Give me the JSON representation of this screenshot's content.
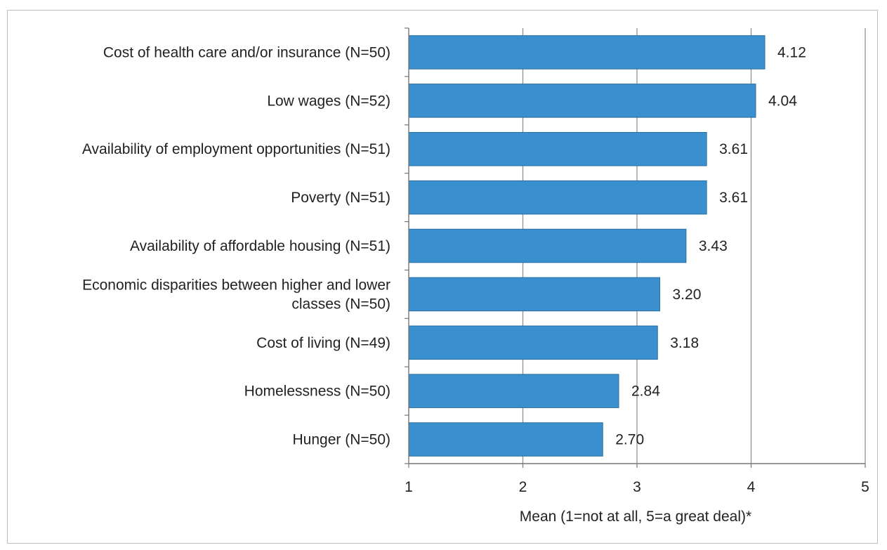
{
  "chart_data": {
    "type": "bar",
    "orientation": "horizontal",
    "categories": [
      "Cost of health care and/or insurance (N=50)",
      "Low wages (N=52)",
      "Availability of employment opportunities (N=51)",
      "Poverty (N=51)",
      "Availability of affordable housing (N=51)",
      "Economic disparities between higher and lower classes (N=50)",
      "Cost of living (N=49)",
      "Homelessness (N=50)",
      "Hunger (N=50)"
    ],
    "category_lines": [
      [
        "Cost of health care and/or insurance (N=50)"
      ],
      [
        "Low wages (N=52)"
      ],
      [
        "Availability of employment opportunities (N=51)"
      ],
      [
        "Poverty (N=51)"
      ],
      [
        "Availability of affordable housing (N=51)"
      ],
      [
        "Economic disparities between higher and lower",
        "classes (N=50)"
      ],
      [
        "Cost of living (N=49)"
      ],
      [
        "Homelessness (N=50)"
      ],
      [
        "Hunger (N=50)"
      ]
    ],
    "values": [
      4.12,
      4.04,
      3.61,
      3.61,
      3.43,
      3.2,
      3.18,
      2.84,
      2.7
    ],
    "value_labels": [
      "4.12",
      "4.04",
      "3.61",
      "3.61",
      "3.43",
      "3.20",
      "3.18",
      "2.84",
      "2.70"
    ],
    "xlim": [
      1,
      5
    ],
    "xticks": [
      "1",
      "2",
      "3",
      "4",
      "5"
    ],
    "xlabel": "Mean (1=not at all, 5=a great deal)*",
    "ylabel": "",
    "title": "",
    "grid": "vertical",
    "bar_color": "#3a8fce"
  }
}
